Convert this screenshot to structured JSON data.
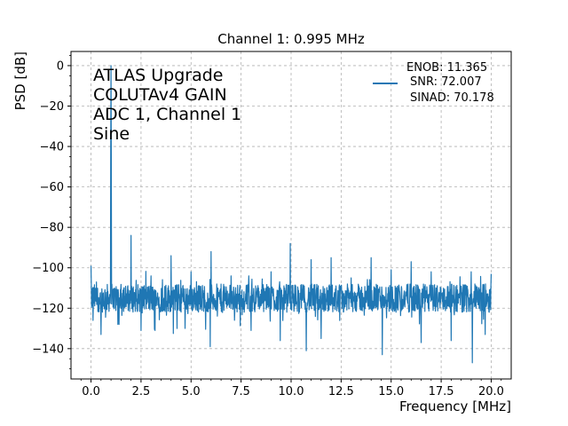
{
  "chart_data": {
    "type": "line",
    "title": "Channel 1: 0.995 MHz",
    "xlabel": "Frequency [MHz]",
    "ylabel": "PSD [dB]",
    "xlim": [
      -1.0,
      21.0
    ],
    "ylim": [
      -155,
      7
    ],
    "x_ticks": [
      0.0,
      2.5,
      5.0,
      7.5,
      10.0,
      12.5,
      15.0,
      17.5,
      20.0
    ],
    "x_tick_labels": [
      "0.0",
      "2.5",
      "5.0",
      "7.5",
      "10.0",
      "12.5",
      "15.0",
      "17.5",
      "20.0"
    ],
    "y_ticks": [
      0,
      -20,
      -40,
      -60,
      -80,
      -100,
      -120,
      -140
    ],
    "y_tick_labels": [
      "0",
      "−20",
      "−40",
      "−60",
      "−80",
      "−100",
      "−120",
      "−140"
    ],
    "grid": true,
    "annotation": [
      "ATLAS Upgrade",
      "COLUTAv4 GAIN",
      "ADC 1, Channel 1",
      "Sine"
    ],
    "legend": {
      "placement": "top-right",
      "lines": [
        "ENOB: 11.365",
        "SNR: 72.007",
        "SINAD: 70.178"
      ]
    },
    "series": [
      {
        "color": "#1f77b4",
        "noise_floor_db": -115,
        "fundamental": {
          "x": 0.995,
          "y": 0
        },
        "spurs": [
          {
            "x": 0.0,
            "y": -99
          },
          {
            "x": 0.99,
            "y": -78
          },
          {
            "x": 1.0,
            "y": -83
          },
          {
            "x": 2.0,
            "y": -84
          },
          {
            "x": 3.0,
            "y": -104
          },
          {
            "x": 4.0,
            "y": -94
          },
          {
            "x": 5.0,
            "y": -102
          },
          {
            "x": 6.0,
            "y": -92
          },
          {
            "x": 7.0,
            "y": -104
          },
          {
            "x": 8.0,
            "y": -103
          },
          {
            "x": 9.0,
            "y": -102
          },
          {
            "x": 9.95,
            "y": -88
          },
          {
            "x": 11.0,
            "y": -96
          },
          {
            "x": 12.0,
            "y": -95
          },
          {
            "x": 13.0,
            "y": -105
          },
          {
            "x": 14.0,
            "y": -95
          },
          {
            "x": 15.0,
            "y": -101
          },
          {
            "x": 16.0,
            "y": -97
          },
          {
            "x": 17.0,
            "y": -102
          },
          {
            "x": 18.0,
            "y": -101
          },
          {
            "x": 19.0,
            "y": -102
          },
          {
            "x": 20.0,
            "y": -103
          }
        ],
        "dips": [
          {
            "x": 0.1,
            "y": -126
          },
          {
            "x": 0.5,
            "y": -133
          },
          {
            "x": 1.4,
            "y": -128
          },
          {
            "x": 2.5,
            "y": -131
          },
          {
            "x": 3.2,
            "y": -131
          },
          {
            "x": 4.3,
            "y": -130
          },
          {
            "x": 5.95,
            "y": -139
          },
          {
            "x": 8.0,
            "y": -131
          },
          {
            "x": 9.45,
            "y": -136
          },
          {
            "x": 10.75,
            "y": -141
          },
          {
            "x": 11.5,
            "y": -135
          },
          {
            "x": 14.55,
            "y": -143
          },
          {
            "x": 16.5,
            "y": -137
          },
          {
            "x": 18.0,
            "y": -136
          },
          {
            "x": 19.05,
            "y": -147
          },
          {
            "x": 19.7,
            "y": -133
          }
        ]
      }
    ]
  }
}
